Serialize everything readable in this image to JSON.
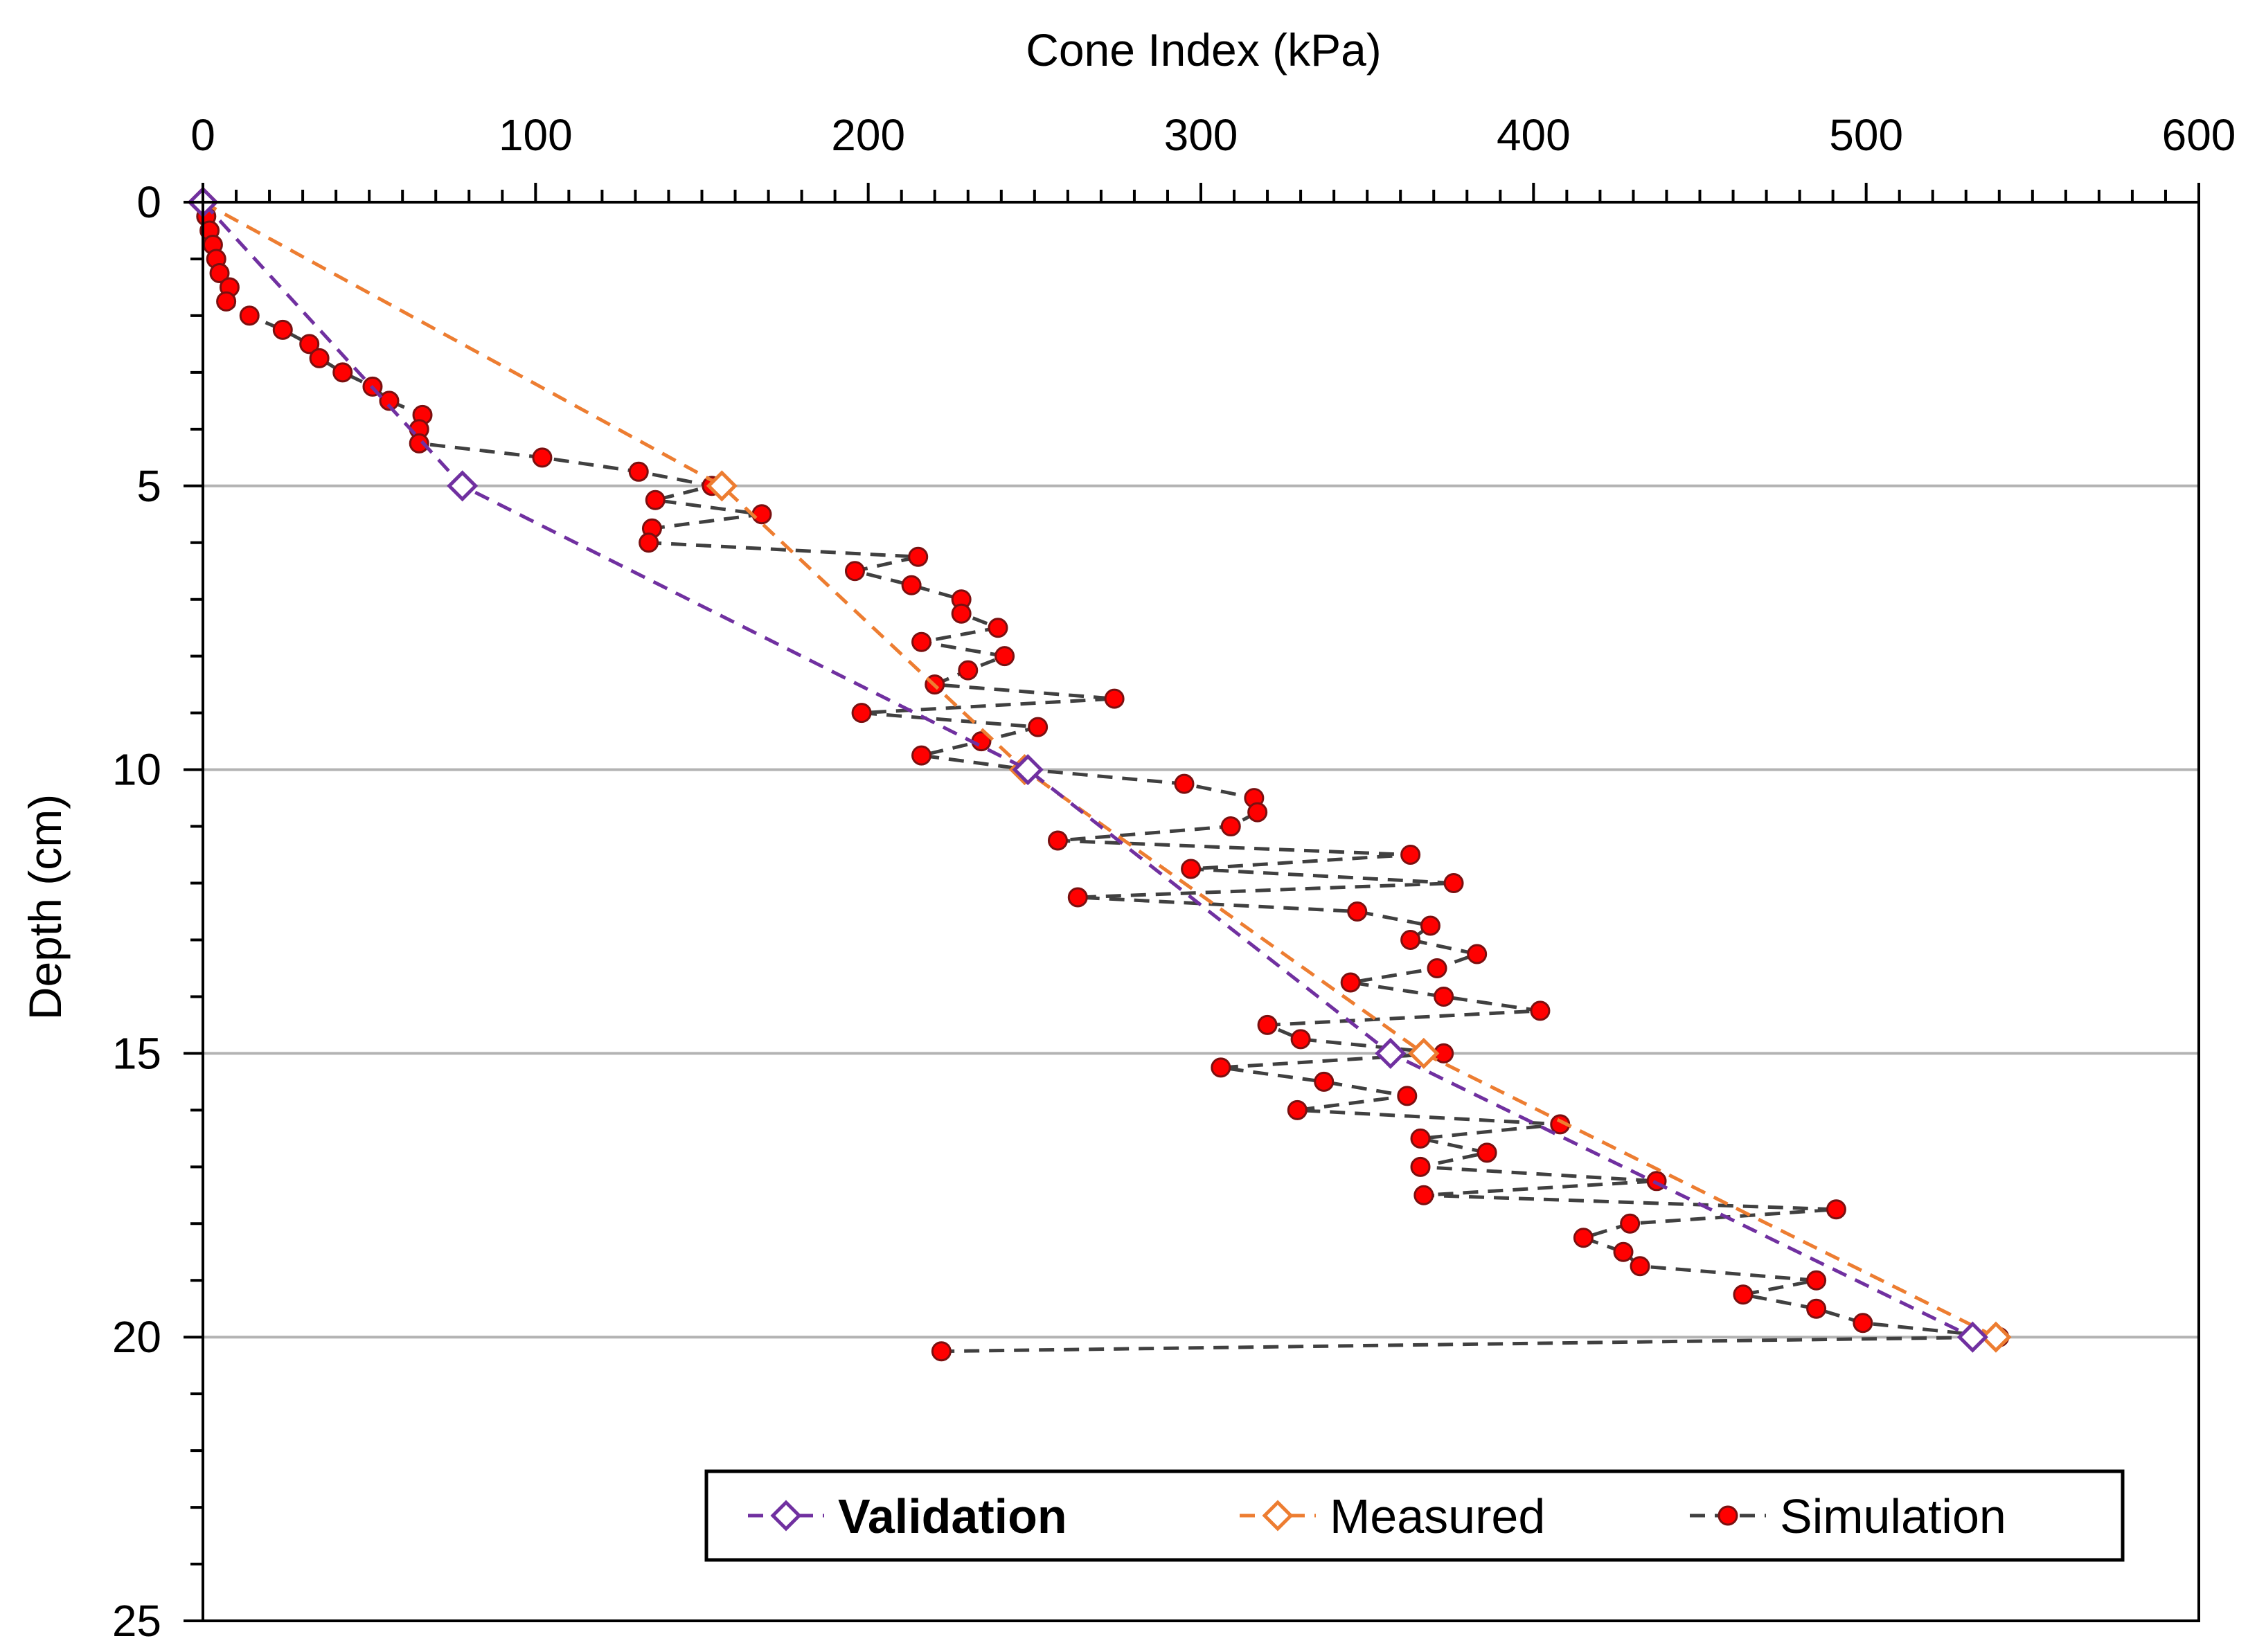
{
  "chart_data": {
    "type": "line",
    "xlabel": "Cone Index (kPa)",
    "ylabel": "Depth (cm)",
    "x_axis_position": "top",
    "y_axis_reversed": true,
    "xlim": [
      0,
      600
    ],
    "ylim": [
      0,
      25
    ],
    "x_ticks": [
      0,
      100,
      200,
      300,
      400,
      500,
      600
    ],
    "y_ticks": [
      0,
      5,
      10,
      15,
      20,
      25
    ],
    "x_tick_labels": [
      "0",
      "100",
      "200",
      "300",
      "400",
      "500",
      "600"
    ],
    "y_tick_labels": [
      "0",
      "5",
      "10",
      "15",
      "20",
      "25"
    ],
    "grid": "horizontal major gridlines",
    "legend_position": "bottom-right",
    "series": [
      {
        "name": "Validation",
        "color": "#7030a0",
        "marker": "open-diamond",
        "line": "dashed",
        "points": [
          [
            0,
            0
          ],
          [
            78,
            5
          ],
          [
            248,
            10
          ],
          [
            357,
            15
          ],
          [
            532,
            20
          ]
        ]
      },
      {
        "name": "Measured",
        "color": "#ed7d31",
        "marker": "open-diamond",
        "line": "dashed",
        "points": [
          [
            0,
            0
          ],
          [
            156,
            5
          ],
          [
            247,
            10
          ],
          [
            367,
            15
          ],
          [
            539,
            20
          ]
        ]
      },
      {
        "name": "Simulation",
        "color": "#404040",
        "marker_color": "#ff0000",
        "marker": "filled-circle",
        "line": "dashed",
        "points": [
          [
            0,
            0
          ],
          [
            1,
            0.25
          ],
          [
            2,
            0.5
          ],
          [
            3,
            0.75
          ],
          [
            4,
            1.0
          ],
          [
            5,
            1.25
          ],
          [
            8,
            1.5
          ],
          [
            7,
            1.75
          ],
          [
            14,
            2.0
          ],
          [
            24,
            2.25
          ],
          [
            32,
            2.5
          ],
          [
            35,
            2.75
          ],
          [
            42,
            3.0
          ],
          [
            51,
            3.25
          ],
          [
            56,
            3.5
          ],
          [
            66,
            3.75
          ],
          [
            65,
            4.0
          ],
          [
            65,
            4.25
          ],
          [
            102,
            4.5
          ],
          [
            131,
            4.75
          ],
          [
            153,
            5.0
          ],
          [
            136,
            5.25
          ],
          [
            168,
            5.5
          ],
          [
            135,
            5.75
          ],
          [
            134,
            6.0
          ],
          [
            215,
            6.25
          ],
          [
            196,
            6.5
          ],
          [
            213,
            6.75
          ],
          [
            228,
            7.0
          ],
          [
            228,
            7.25
          ],
          [
            239,
            7.5
          ],
          [
            216,
            7.75
          ],
          [
            241,
            8.0
          ],
          [
            230,
            8.25
          ],
          [
            220,
            8.5
          ],
          [
            274,
            8.75
          ],
          [
            198,
            9.0
          ],
          [
            251,
            9.25
          ],
          [
            234,
            9.5
          ],
          [
            216,
            9.75
          ],
          [
            248,
            10.0
          ],
          [
            295,
            10.25
          ],
          [
            316,
            10.5
          ],
          [
            317,
            10.75
          ],
          [
            309,
            11.0
          ],
          [
            257,
            11.25
          ],
          [
            363,
            11.5
          ],
          [
            297,
            11.75
          ],
          [
            376,
            12.0
          ],
          [
            263,
            12.25
          ],
          [
            347,
            12.5
          ],
          [
            369,
            12.75
          ],
          [
            363,
            13.0
          ],
          [
            383,
            13.25
          ],
          [
            371,
            13.5
          ],
          [
            345,
            13.75
          ],
          [
            373,
            14.0
          ],
          [
            402,
            14.25
          ],
          [
            320,
            14.5
          ],
          [
            330,
            14.75
          ],
          [
            373,
            15.0
          ],
          [
            306,
            15.25
          ],
          [
            337,
            15.5
          ],
          [
            362,
            15.75
          ],
          [
            329,
            16.0
          ],
          [
            408,
            16.25
          ],
          [
            366,
            16.5
          ],
          [
            386,
            16.75
          ],
          [
            366,
            17.0
          ],
          [
            437,
            17.25
          ],
          [
            367,
            17.5
          ],
          [
            491,
            17.75
          ],
          [
            429,
            18.0
          ],
          [
            415,
            18.25
          ],
          [
            427,
            18.5
          ],
          [
            432,
            18.75
          ],
          [
            485,
            19.0
          ],
          [
            463,
            19.25
          ],
          [
            485,
            19.5
          ],
          [
            499,
            19.75
          ],
          [
            540,
            20.0
          ],
          [
            222,
            20.25
          ]
        ]
      }
    ]
  }
}
